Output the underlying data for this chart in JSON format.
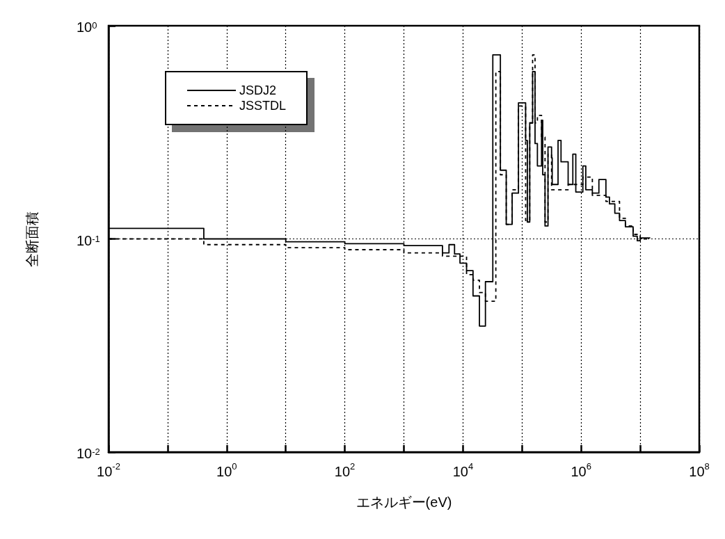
{
  "chart_data": {
    "type": "step",
    "xlabel": "エネルギー(eV)",
    "ylabel": "全断面積",
    "log": "xy",
    "xlim": [
      0.01,
      100000000
    ],
    "ylim": [
      0.01,
      1
    ],
    "xticks": [
      {
        "value": 0.01,
        "label": "10$^{-2}$"
      },
      {
        "value": 0.1,
        "label": null
      },
      {
        "value": 1,
        "label": "10$^{0}$"
      },
      {
        "value": 10,
        "label": null
      },
      {
        "value": 100,
        "label": "10$^{2}$"
      },
      {
        "value": 1000,
        "label": null
      },
      {
        "value": 10000,
        "label": "10$^{4}$"
      },
      {
        "value": 100000,
        "label": null
      },
      {
        "value": 1000000,
        "label": "10$^{6}$"
      },
      {
        "value": 10000000,
        "label": null
      },
      {
        "value": 100000000,
        "label": "10$^{8}$"
      }
    ],
    "yticks": [
      {
        "value": 0.01,
        "label": "10$^{-2}$"
      },
      {
        "value": 0.1,
        "label": "10$^{-1}$"
      },
      {
        "value": 1,
        "label": "10$^{0}$"
      }
    ],
    "grid": true,
    "legend": "top left",
    "marker": "none",
    "series": [
      {
        "name": "JSDJ2",
        "color": "#000000",
        "line_style": "solid",
        "x": [
          0.01,
          0.41,
          10,
          100,
          1000,
          4500,
          5800,
          7200,
          8900,
          11500,
          14800,
          19000,
          24000,
          32000,
          43000,
          54000,
          68000,
          87000,
          115000,
          123000,
          135000,
          151000,
          166000,
          182000,
          214000,
          224000,
          245000,
          275000,
          316000,
          324000,
          407000,
          457000,
          603000,
          724000,
          813000,
          1070000,
          1200000,
          1550000,
          2000000,
          2630000,
          3020000,
          3720000,
          4470000,
          5620000,
          7590000,
          8910000,
          10000000,
          14800000
        ],
        "values": [
          0.112,
          0.1,
          0.097,
          0.095,
          0.093,
          0.086,
          0.094,
          0.085,
          0.077,
          0.071,
          0.054,
          0.039,
          0.063,
          0.73,
          0.21,
          0.117,
          0.164,
          0.435,
          0.29,
          0.12,
          0.35,
          0.61,
          0.28,
          0.22,
          0.36,
          0.2,
          0.115,
          0.27,
          0.24,
          0.18,
          0.29,
          0.23,
          0.18,
          0.25,
          0.166,
          0.22,
          0.17,
          0.164,
          0.19,
          0.157,
          0.146,
          0.132,
          0.122,
          0.114,
          0.103,
          0.098,
          0.101,
          0.101
        ]
      },
      {
        "name": "JSSTDL",
        "color": "#000000",
        "line_style": "dashed",
        "x": [
          0.01,
          0.41,
          10,
          100,
          1000,
          4500,
          11500,
          14800,
          19000,
          24000,
          36000,
          43000,
          54000,
          68000,
          87000,
          115000,
          135000,
          151000,
          166000,
          182000,
          214000,
          245000,
          275000,
          316000,
          407000,
          603000,
          1070000,
          1550000,
          2630000,
          4470000,
          5620000,
          7590000,
          10000000,
          14800000
        ],
        "values": [
          0.1,
          0.094,
          0.091,
          0.089,
          0.086,
          0.083,
          0.068,
          0.064,
          0.056,
          0.051,
          0.61,
          0.2,
          0.117,
          0.17,
          0.42,
          0.122,
          0.35,
          0.73,
          0.35,
          0.38,
          0.3,
          0.12,
          0.25,
          0.17,
          0.17,
          0.18,
          0.195,
          0.16,
          0.15,
          0.125,
          0.115,
          0.105,
          0.1,
          0.1
        ]
      }
    ]
  }
}
